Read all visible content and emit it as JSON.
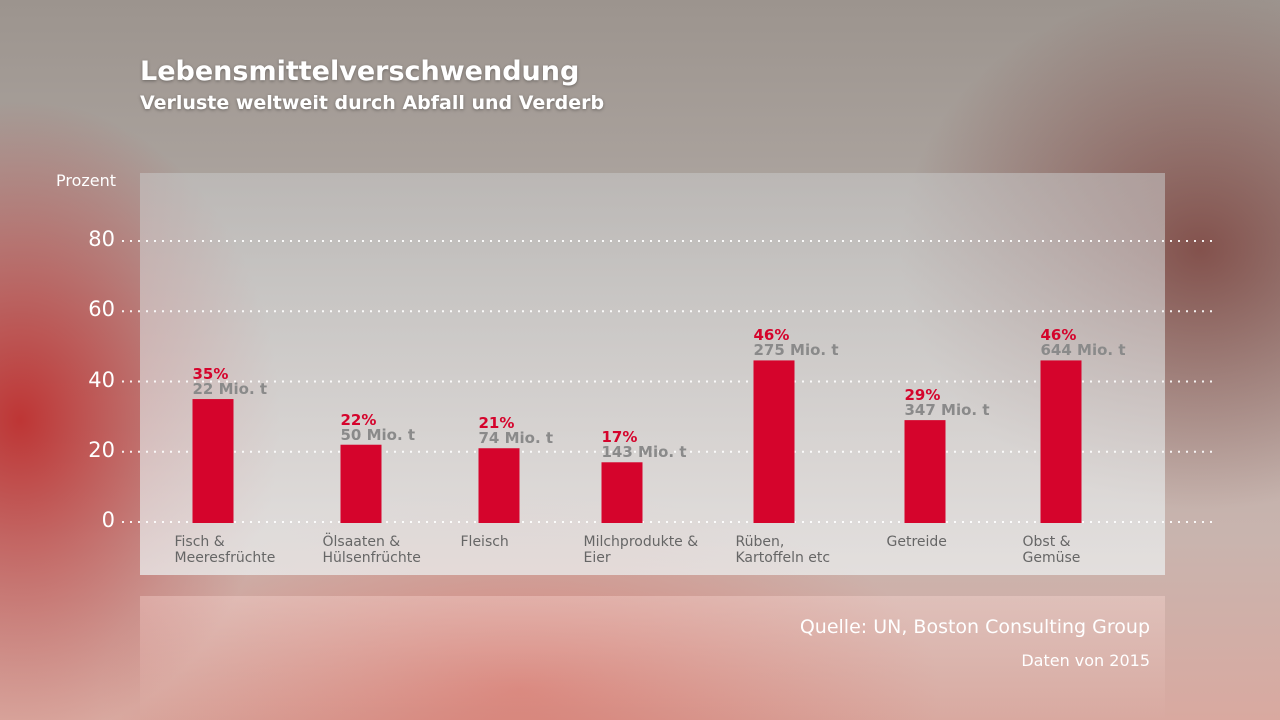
{
  "chart_data": {
    "type": "bar",
    "title": "Lebensmittelverschwendung",
    "subtitle": "Verluste weltweit durch Abfall und Verderb",
    "ylabel": "Prozent",
    "ylim": [
      0,
      80
    ],
    "yticks": [
      0,
      20,
      40,
      60,
      80
    ],
    "grid": true,
    "categories": [
      [
        "Fisch &",
        "Meeresfrüchte"
      ],
      [
        "Ölsaaten &",
        "Hülsenfrüchte"
      ],
      [
        "Fleisch",
        ""
      ],
      [
        "Milchprodukte &",
        "Eier"
      ],
      [
        "Rüben,",
        "Kartoffeln etc"
      ],
      [
        "Getreide",
        ""
      ],
      [
        "Obst &",
        "Gemüse"
      ]
    ],
    "values": [
      35,
      22,
      21,
      17,
      46,
      29,
      46
    ],
    "value_labels": [
      "35%",
      "22%",
      "21%",
      "17%",
      "46%",
      "29%",
      "46%"
    ],
    "tonnage_labels": [
      "22 Mio. t",
      "50 Mio. t",
      "74 Mio. t",
      "143 Mio. t",
      "275 Mio. t",
      "347 Mio. t",
      "644 Mio. t"
    ],
    "bar_color": "#d5042c"
  },
  "footer": {
    "source": "Quelle: UN, Boston Consulting Group",
    "date": "Daten von 2015"
  }
}
